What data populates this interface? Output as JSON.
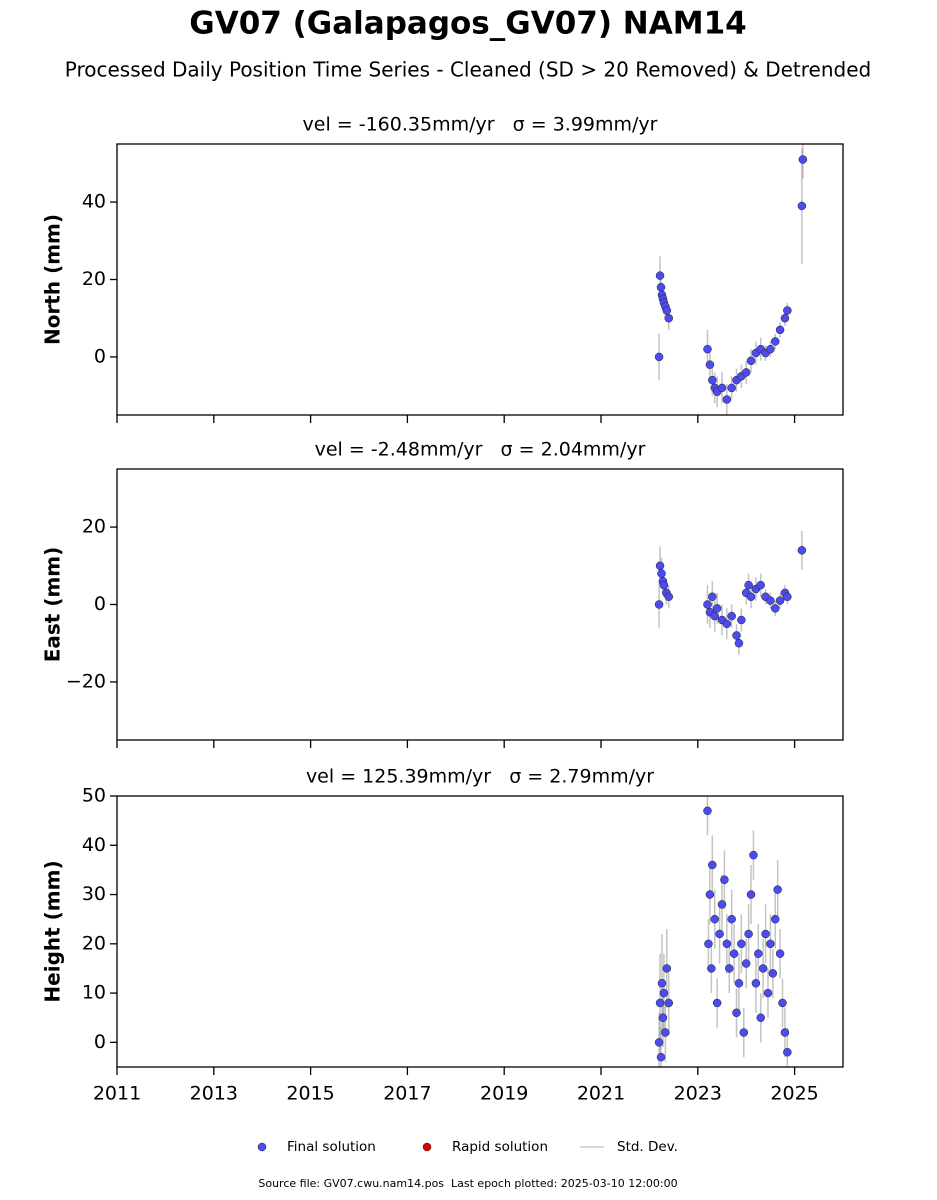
{
  "title": "GV07 (Galapagos_GV07) NAM14",
  "subtitle": "Processed Daily Position Time Series - Cleaned (SD > 20 Removed) & Detrended",
  "footer": "Source file: GV07.cwu.nam14.pos  Last epoch plotted: 2025-03-10 12:00:00",
  "error_name": "Std. Dev.",
  "chart_data": [
    {
      "type": "scatter",
      "title": "vel = -160.35mm/yr   σ = 3.99mm/yr",
      "ylabel": "North (mm)",
      "xlim": [
        2011,
        2026
      ],
      "xticks": [
        2011,
        2013,
        2015,
        2017,
        2019,
        2021,
        2023,
        2025
      ],
      "show_xticklabels": false,
      "ylim": [
        -15,
        55
      ],
      "yticks": [
        0,
        20,
        40
      ],
      "series": [
        {
          "name": "Final solution",
          "color": "#4b4bf0",
          "x": [
            2022.2,
            2022.22,
            2022.24,
            2022.26,
            2022.28,
            2022.3,
            2022.33,
            2022.36,
            2022.4,
            2023.2,
            2023.25,
            2023.3,
            2023.35,
            2023.4,
            2023.5,
            2023.6,
            2023.7,
            2023.8,
            2023.9,
            2024.0,
            2024.1,
            2024.2,
            2024.3,
            2024.4,
            2024.5,
            2024.6,
            2024.7,
            2024.8,
            2024.85,
            2025.15,
            2025.17
          ],
          "values": [
            0,
            21,
            18,
            16,
            15,
            14,
            13,
            12,
            10,
            2,
            -2,
            -6,
            -8,
            -9,
            -8,
            -11,
            -8,
            -6,
            -5,
            -4,
            -1,
            1,
            2,
            1,
            2,
            4,
            7,
            10,
            12,
            39,
            51
          ],
          "errors": [
            6,
            5,
            4,
            3,
            3,
            3,
            3,
            3,
            3,
            5,
            4,
            4,
            4,
            4,
            4,
            4,
            3,
            3,
            3,
            3,
            3,
            3,
            3,
            2,
            2,
            2,
            2,
            2,
            2,
            15,
            5
          ]
        },
        {
          "name": "Rapid solution",
          "color": "#e00000",
          "x": [],
          "values": [],
          "errors": []
        }
      ]
    },
    {
      "type": "scatter",
      "title": "vel = -2.48mm/yr   σ = 2.04mm/yr",
      "ylabel": "East (mm)",
      "xlim": [
        2011,
        2026
      ],
      "xticks": [
        2011,
        2013,
        2015,
        2017,
        2019,
        2021,
        2023,
        2025
      ],
      "show_xticklabels": false,
      "ylim": [
        -35,
        35
      ],
      "yticks": [
        {
          "value": -20,
          "label": "−20"
        },
        0,
        20
      ],
      "series": [
        {
          "name": "Final solution",
          "color": "#4b4bf0",
          "x": [
            2022.2,
            2022.22,
            2022.25,
            2022.28,
            2022.3,
            2022.35,
            2022.4,
            2023.2,
            2023.25,
            2023.3,
            2023.35,
            2023.4,
            2023.5,
            2023.6,
            2023.7,
            2023.8,
            2023.85,
            2023.9,
            2024.0,
            2024.05,
            2024.1,
            2024.2,
            2024.3,
            2024.4,
            2024.5,
            2024.6,
            2024.7,
            2024.8,
            2024.85,
            2025.15
          ],
          "values": [
            0,
            10,
            8,
            6,
            5,
            3,
            2,
            0,
            -2,
            2,
            -3,
            -1,
            -4,
            -5,
            -3,
            -8,
            -10,
            -4,
            3,
            5,
            2,
            4,
            5,
            2,
            1,
            -1,
            1,
            3,
            2,
            14
          ],
          "errors": [
            6,
            5,
            4,
            3,
            3,
            3,
            3,
            5,
            4,
            4,
            4,
            4,
            4,
            4,
            3,
            3,
            3,
            3,
            3,
            3,
            3,
            3,
            3,
            2,
            2,
            2,
            2,
            2,
            2,
            5
          ]
        },
        {
          "name": "Rapid solution",
          "color": "#e00000",
          "x": [],
          "values": [],
          "errors": []
        }
      ]
    },
    {
      "type": "scatter",
      "title": "vel = 125.39mm/yr   σ = 2.79mm/yr",
      "ylabel": "Height (mm)",
      "xlim": [
        2011,
        2026
      ],
      "xticks": [
        2011,
        2013,
        2015,
        2017,
        2019,
        2021,
        2023,
        2025
      ],
      "show_xticklabels": true,
      "ylim": [
        -5,
        50
      ],
      "yticks": [
        0,
        10,
        20,
        30,
        40,
        50
      ],
      "series": [
        {
          "name": "Final solution",
          "color": "#4b4bf0",
          "x": [
            2022.2,
            2022.22,
            2022.24,
            2022.26,
            2022.28,
            2022.3,
            2022.33,
            2022.36,
            2022.4,
            2023.2,
            2023.22,
            2023.25,
            2023.28,
            2023.3,
            2023.35,
            2023.4,
            2023.45,
            2023.5,
            2023.55,
            2023.6,
            2023.65,
            2023.7,
            2023.75,
            2023.8,
            2023.85,
            2023.9,
            2023.95,
            2024.0,
            2024.05,
            2024.1,
            2024.15,
            2024.2,
            2024.25,
            2024.3,
            2024.35,
            2024.4,
            2024.45,
            2024.5,
            2024.55,
            2024.6,
            2024.65,
            2024.7,
            2024.75,
            2024.8,
            2024.85
          ],
          "values": [
            0,
            8,
            -3,
            12,
            5,
            10,
            2,
            15,
            8,
            47,
            20,
            30,
            15,
            36,
            25,
            8,
            22,
            28,
            33,
            20,
            15,
            25,
            18,
            6,
            12,
            20,
            2,
            16,
            22,
            30,
            38,
            12,
            18,
            5,
            15,
            22,
            10,
            20,
            14,
            25,
            31,
            18,
            8,
            2,
            -2
          ],
          "errors": [
            6,
            10,
            6,
            10,
            6,
            8,
            6,
            8,
            6,
            5,
            5,
            6,
            5,
            6,
            6,
            5,
            6,
            6,
            6,
            6,
            5,
            6,
            6,
            5,
            6,
            6,
            5,
            5,
            6,
            6,
            5,
            6,
            6,
            5,
            6,
            6,
            5,
            6,
            5,
            6,
            6,
            5,
            5,
            5,
            5
          ]
        },
        {
          "name": "Rapid solution",
          "color": "#e00000",
          "x": [],
          "values": [],
          "errors": []
        }
      ]
    }
  ]
}
